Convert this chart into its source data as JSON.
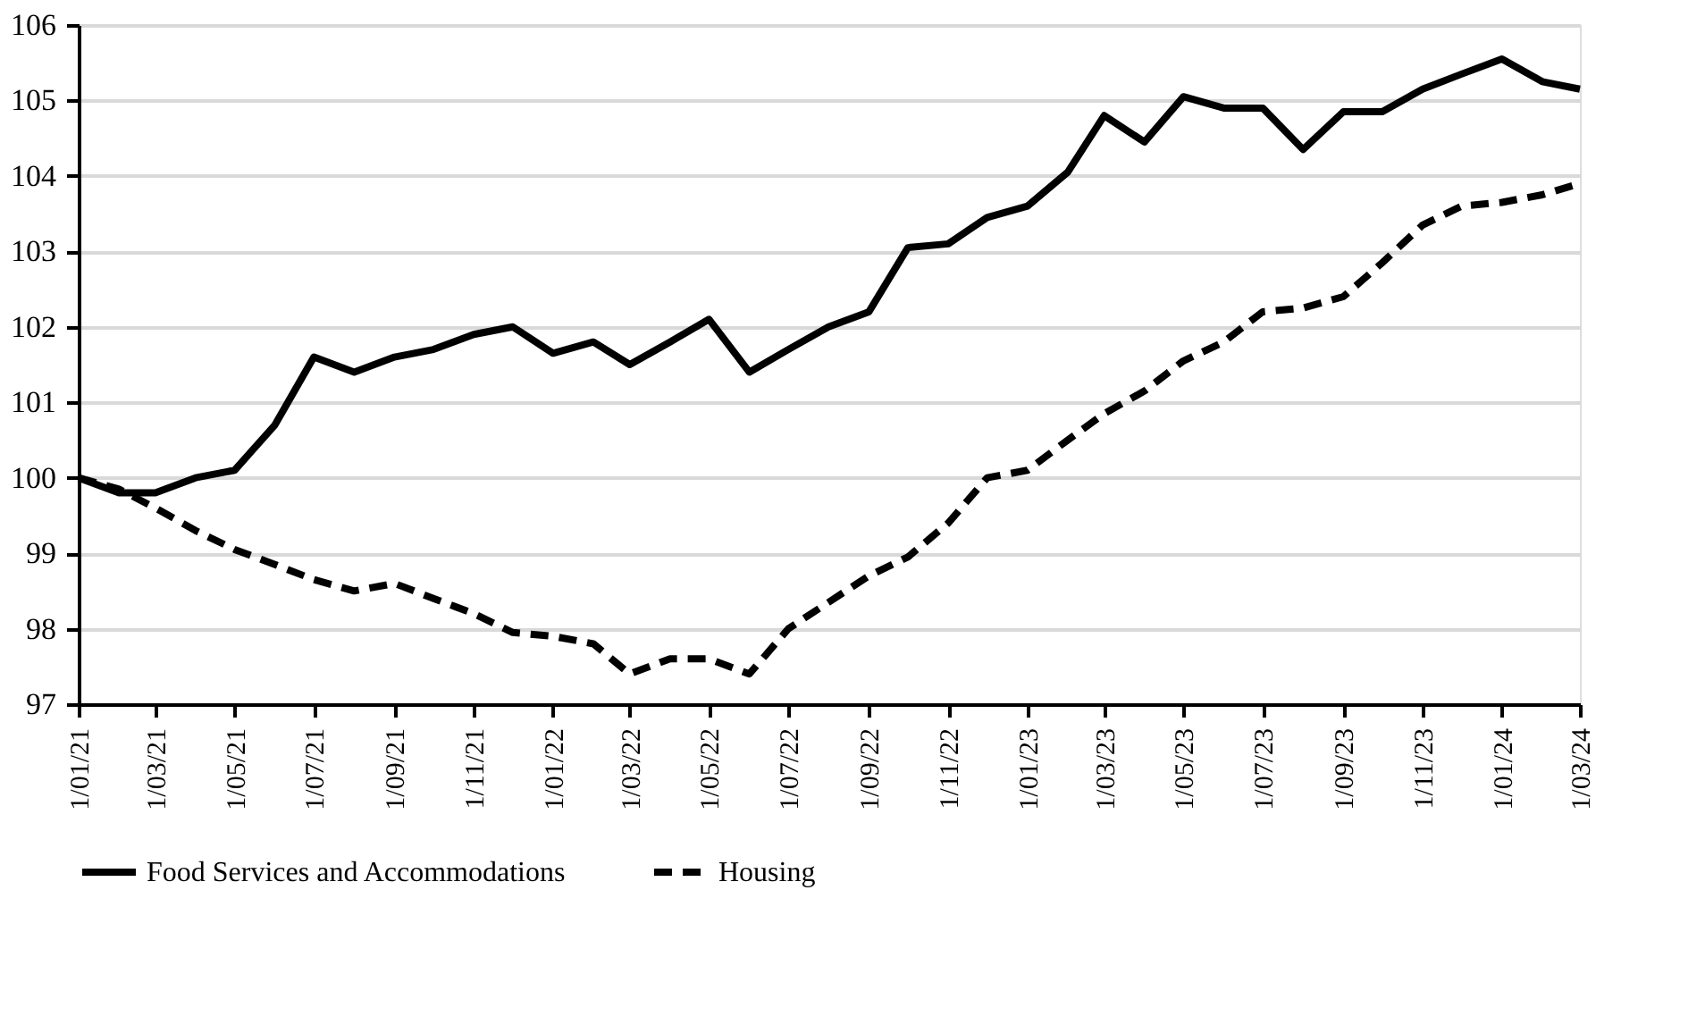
{
  "chart_data": {
    "type": "line",
    "x": [
      "2021-01",
      "2021-02",
      "2021-03",
      "2021-04",
      "2021-05",
      "2021-06",
      "2021-07",
      "2021-08",
      "2021-09",
      "2021-10",
      "2021-11",
      "2021-12",
      "2022-01",
      "2022-02",
      "2022-03",
      "2022-04",
      "2022-05",
      "2022-06",
      "2022-07",
      "2022-08",
      "2022-09",
      "2022-10",
      "2022-11",
      "2022-12",
      "2023-01",
      "2023-02",
      "2023-03",
      "2023-04",
      "2023-05",
      "2023-06",
      "2023-07",
      "2023-08",
      "2023-09",
      "2023-10",
      "2023-11",
      "2023-12",
      "2024-01",
      "2024-02",
      "2024-03"
    ],
    "series": [
      {
        "name": "Food Services and Accommodations",
        "color": "#000000",
        "line_style": "solid",
        "values": [
          100.0,
          99.8,
          99.8,
          100.0,
          100.1,
          100.7,
          101.6,
          101.4,
          101.6,
          101.7,
          101.9,
          102.0,
          101.65,
          101.8,
          101.5,
          101.8,
          102.1,
          101.4,
          101.7,
          102.0,
          102.2,
          103.05,
          103.1,
          103.45,
          103.6,
          104.05,
          104.8,
          104.45,
          105.05,
          104.9,
          104.9,
          104.35,
          104.85,
          104.85,
          105.15,
          105.35,
          105.55,
          105.25,
          105.15
        ]
      },
      {
        "name": "Housing",
        "color": "#000000",
        "line_style": "dashed",
        "values": [
          100.0,
          99.85,
          99.6,
          99.3,
          99.05,
          98.85,
          98.65,
          98.5,
          98.6,
          98.4,
          98.2,
          97.95,
          97.9,
          97.8,
          97.4,
          97.6,
          97.6,
          97.4,
          98.0,
          98.35,
          98.7,
          98.95,
          99.4,
          100.0,
          100.1,
          100.5,
          100.85,
          101.15,
          101.55,
          101.8,
          102.2,
          102.25,
          102.4,
          102.85,
          103.35,
          103.6,
          103.65,
          103.75,
          103.9
        ]
      }
    ],
    "xlim": [
      "2021-01",
      "2024-03"
    ],
    "xticks": [
      {
        "value": "2021-01",
        "label": "1/01/21"
      },
      {
        "value": "2021-03",
        "label": "1/03/21"
      },
      {
        "value": "2021-05",
        "label": "1/05/21"
      },
      {
        "value": "2021-07",
        "label": "1/07/21"
      },
      {
        "value": "2021-09",
        "label": "1/09/21"
      },
      {
        "value": "2021-11",
        "label": "1/11/21"
      },
      {
        "value": "2022-01",
        "label": "1/01/22"
      },
      {
        "value": "2022-03",
        "label": "1/03/22"
      },
      {
        "value": "2022-05",
        "label": "1/05/22"
      },
      {
        "value": "2022-07",
        "label": "1/07/22"
      },
      {
        "value": "2022-09",
        "label": "1/09/22"
      },
      {
        "value": "2022-11",
        "label": "1/11/22"
      },
      {
        "value": "2023-01",
        "label": "1/01/23"
      },
      {
        "value": "2023-03",
        "label": "1/03/23"
      },
      {
        "value": "2023-05",
        "label": "1/05/23"
      },
      {
        "value": "2023-07",
        "label": "1/07/23"
      },
      {
        "value": "2023-09",
        "label": "1/09/23"
      },
      {
        "value": "2023-11",
        "label": "1/11/23"
      },
      {
        "value": "2024-01",
        "label": "1/01/24"
      },
      {
        "value": "2024-03",
        "label": "1/03/24"
      }
    ],
    "ylim": [
      97,
      106
    ],
    "yticks": [
      97,
      98,
      99,
      100,
      101,
      102,
      103,
      104,
      105,
      106
    ],
    "grid": "y",
    "legend": "bottom",
    "marker": "none"
  }
}
